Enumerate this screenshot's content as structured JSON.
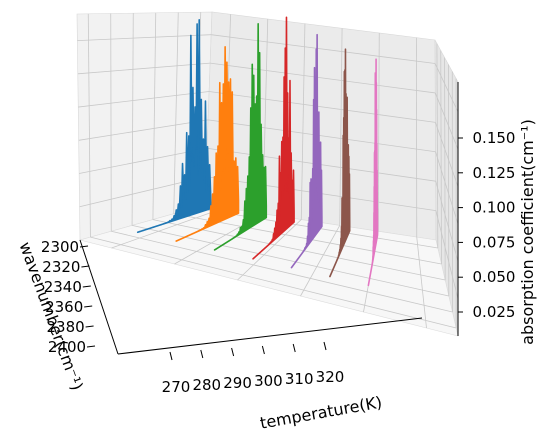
{
  "chart_data": {
    "type": "3d-waterfall",
    "xlabel": "temperature(K)",
    "ylabel": "wavenumber(cm⁻¹)",
    "zlabel": "absorption coefficient(cm⁻¹)",
    "x_ticks": [
      "270",
      "280",
      "290",
      "300",
      "310",
      "320"
    ],
    "y_ticks": [
      "2300",
      "2320",
      "2340",
      "2360",
      "2380",
      "2400"
    ],
    "z_ticks": [
      "0.025",
      "0.050",
      "0.075",
      "0.100",
      "0.125",
      "0.150"
    ],
    "zlim": [
      0,
      0.17
    ],
    "grid": true,
    "series": [
      {
        "temperature": 265,
        "color": "#1f77b4",
        "peak_absorption": 0.14
      },
      {
        "temperature": 272,
        "color": "#ff7f0e",
        "peak_absorption": 0.14
      },
      {
        "temperature": 279,
        "color": "#2ca02c",
        "peak_absorption": 0.145
      },
      {
        "temperature": 286,
        "color": "#d62728",
        "peak_absorption": 0.14
      },
      {
        "temperature": 293,
        "color": "#9467bd",
        "peak_absorption": 0.145
      },
      {
        "temperature": 300,
        "color": "#8c564b",
        "peak_absorption": 0.14
      },
      {
        "temperature": 307,
        "color": "#e377c2",
        "peak_absorption": 0.135
      }
    ]
  }
}
